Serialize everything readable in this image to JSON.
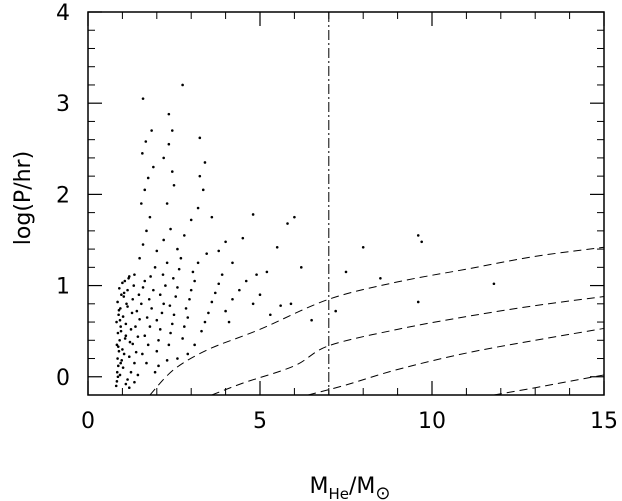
{
  "chart_data": {
    "type": "scatter",
    "title": "",
    "xlabel": {
      "main": "M",
      "sub": "He",
      "sep": "/M",
      "sun": "⊙"
    },
    "ylabel": "log(P/hr)",
    "xlim": [
      0,
      15
    ],
    "ylim": [
      -0.2,
      4
    ],
    "x_ticks": [
      0,
      5,
      10,
      15
    ],
    "x_tick_labels": [
      "0",
      "5",
      "10",
      "15"
    ],
    "y_ticks": [
      0,
      1,
      2,
      3,
      4
    ],
    "y_tick_labels": [
      "0",
      "1",
      "2",
      "3",
      "4"
    ],
    "grid": false,
    "vertical_line": {
      "x": 7.0,
      "style": "dash-dot"
    },
    "curves": [
      {
        "style": "dashed",
        "points": [
          [
            1.8,
            -0.2
          ],
          [
            2.5,
            0.08
          ],
          [
            3.5,
            0.3
          ],
          [
            5,
            0.52
          ],
          [
            7,
            0.85
          ],
          [
            9,
            1.04
          ],
          [
            11,
            1.18
          ],
          [
            13,
            1.32
          ],
          [
            15,
            1.42
          ]
        ]
      },
      {
        "style": "dashed",
        "points": [
          [
            3.6,
            -0.2
          ],
          [
            4.5,
            -0.07
          ],
          [
            6,
            0.12
          ],
          [
            7,
            0.34
          ],
          [
            9,
            0.52
          ],
          [
            11,
            0.66
          ],
          [
            13,
            0.78
          ],
          [
            15,
            0.88
          ]
        ]
      },
      {
        "style": "dashed",
        "points": [
          [
            6.4,
            -0.2
          ],
          [
            7.5,
            -0.09
          ],
          [
            9,
            0.08
          ],
          [
            11,
            0.26
          ],
          [
            13,
            0.4
          ],
          [
            15,
            0.53
          ]
        ]
      },
      {
        "style": "dashed",
        "points": [
          [
            11.8,
            -0.2
          ],
          [
            13,
            -0.12
          ],
          [
            14,
            -0.05
          ],
          [
            15,
            0.02
          ]
        ]
      }
    ],
    "points": [
      [
        0.82,
        -0.1
      ],
      [
        0.85,
        0.05
      ],
      [
        0.88,
        0.12
      ],
      [
        0.86,
        0.2
      ],
      [
        0.9,
        0.28
      ],
      [
        0.84,
        0.35
      ],
      [
        0.92,
        0.4
      ],
      [
        0.87,
        0.48
      ],
      [
        0.95,
        0.55
      ],
      [
        0.83,
        0.6
      ],
      [
        0.89,
        0.68
      ],
      [
        0.94,
        0.75
      ],
      [
        0.86,
        0.82
      ],
      [
        0.97,
        0.9
      ],
      [
        0.91,
        0.97
      ],
      [
        1.0,
        1.03
      ],
      [
        0.84,
        -0.05
      ],
      [
        0.93,
        0.02
      ],
      [
        1.02,
        0.1
      ],
      [
        0.98,
        0.18
      ],
      [
        1.05,
        0.25
      ],
      [
        0.88,
        0.33
      ],
      [
        1.08,
        0.42
      ],
      [
        0.96,
        0.5
      ],
      [
        1.1,
        0.58
      ],
      [
        1.02,
        0.66
      ],
      [
        0.9,
        0.73
      ],
      [
        1.12,
        0.8
      ],
      [
        1.04,
        0.88
      ],
      [
        1.15,
        0.95
      ],
      [
        1.07,
        1.05
      ],
      [
        1.18,
        1.08
      ],
      [
        0.95,
        0.15
      ],
      [
        1.2,
        0.22
      ],
      [
        1.0,
        0.3
      ],
      [
        1.22,
        0.38
      ],
      [
        1.1,
        0.45
      ],
      [
        1.25,
        0.52
      ],
      [
        0.93,
        0.62
      ],
      [
        1.28,
        0.7
      ],
      [
        1.15,
        0.77
      ],
      [
        1.3,
        0.85
      ],
      [
        1.05,
        0.92
      ],
      [
        1.33,
        1.0
      ],
      [
        1.2,
        1.1
      ],
      [
        0.87,
        0.0
      ],
      [
        1.1,
        -0.08
      ],
      [
        1.25,
        0.05
      ],
      [
        1.35,
        0.15
      ],
      [
        1.4,
        0.27
      ],
      [
        1.3,
        0.36
      ],
      [
        1.45,
        0.44
      ],
      [
        1.38,
        0.55
      ],
      [
        1.5,
        0.63
      ],
      [
        1.42,
        0.72
      ],
      [
        1.55,
        0.8
      ],
      [
        1.48,
        0.9
      ],
      [
        1.6,
        0.98
      ],
      [
        1.35,
        1.12
      ],
      [
        1.65,
        1.05
      ],
      [
        1.7,
        0.15
      ],
      [
        1.58,
        0.25
      ],
      [
        1.75,
        0.35
      ],
      [
        1.65,
        0.45
      ],
      [
        1.8,
        0.55
      ],
      [
        1.72,
        0.65
      ],
      [
        1.85,
        0.75
      ],
      [
        1.78,
        0.85
      ],
      [
        1.9,
        0.95
      ],
      [
        1.82,
        1.1
      ],
      [
        1.95,
        1.2
      ],
      [
        2.0,
        0.28
      ],
      [
        2.05,
        0.4
      ],
      [
        2.1,
        0.52
      ],
      [
        2.0,
        0.62
      ],
      [
        2.15,
        0.7
      ],
      [
        2.2,
        0.8
      ],
      [
        2.1,
        0.9
      ],
      [
        2.25,
        1.0
      ],
      [
        2.18,
        1.12
      ],
      [
        2.3,
        1.25
      ],
      [
        2.35,
        0.35
      ],
      [
        2.4,
        0.48
      ],
      [
        2.45,
        0.58
      ],
      [
        2.5,
        0.68
      ],
      [
        2.38,
        0.78
      ],
      [
        2.55,
        0.88
      ],
      [
        2.6,
        0.98
      ],
      [
        2.48,
        1.08
      ],
      [
        2.65,
        1.18
      ],
      [
        2.7,
        1.3
      ],
      [
        2.75,
        0.42
      ],
      [
        2.8,
        0.55
      ],
      [
        2.9,
        0.65
      ],
      [
        2.85,
        0.75
      ],
      [
        2.95,
        0.85
      ],
      [
        3.0,
        0.95
      ],
      [
        3.1,
        1.05
      ],
      [
        3.05,
        1.15
      ],
      [
        3.2,
        1.25
      ],
      [
        3.3,
        0.5
      ],
      [
        3.4,
        0.6
      ],
      [
        3.5,
        0.7
      ],
      [
        3.6,
        0.82
      ],
      [
        3.7,
        0.92
      ],
      [
        3.8,
        1.02
      ],
      [
        3.9,
        1.12
      ],
      [
        4.0,
        0.72
      ],
      [
        4.2,
        0.85
      ],
      [
        4.4,
        0.95
      ],
      [
        4.6,
        1.05
      ],
      [
        4.8,
        0.8
      ],
      [
        5.0,
        0.9
      ],
      [
        5.3,
        0.68
      ],
      [
        5.6,
        0.78
      ],
      [
        1.5,
        1.3
      ],
      [
        1.6,
        1.45
      ],
      [
        1.7,
        1.6
      ],
      [
        1.8,
        1.75
      ],
      [
        1.55,
        1.9
      ],
      [
        1.65,
        2.05
      ],
      [
        1.75,
        2.18
      ],
      [
        1.9,
        2.3
      ],
      [
        1.58,
        2.45
      ],
      [
        1.68,
        2.58
      ],
      [
        1.85,
        2.7
      ],
      [
        2.0,
        1.38
      ],
      [
        2.2,
        1.5
      ],
      [
        2.4,
        1.62
      ],
      [
        2.6,
        1.4
      ],
      [
        2.8,
        1.55
      ],
      [
        3.0,
        1.72
      ],
      [
        3.2,
        1.85
      ],
      [
        3.35,
        2.05
      ],
      [
        3.25,
        2.2
      ],
      [
        3.4,
        2.35
      ],
      [
        2.3,
        1.9
      ],
      [
        2.5,
        2.1
      ],
      [
        2.45,
        2.25
      ],
      [
        2.2,
        2.4
      ],
      [
        2.35,
        2.55
      ],
      [
        2.45,
        2.7
      ],
      [
        2.35,
        2.88
      ],
      [
        2.75,
        3.2
      ],
      [
        1.6,
        3.05
      ],
      [
        3.25,
        2.62
      ],
      [
        3.6,
        1.75
      ],
      [
        4.0,
        1.48
      ],
      [
        4.5,
        1.52
      ],
      [
        4.8,
        1.78
      ],
      [
        5.5,
        1.42
      ],
      [
        6.0,
        1.75
      ],
      [
        6.2,
        1.2
      ],
      [
        5.8,
        1.68
      ],
      [
        7.5,
        1.15
      ],
      [
        8.0,
        1.42
      ],
      [
        8.5,
        1.08
      ],
      [
        9.6,
        1.55
      ],
      [
        9.7,
        1.48
      ],
      [
        9.6,
        0.82
      ],
      [
        11.8,
        1.02
      ],
      [
        6.5,
        0.62
      ],
      [
        7.2,
        0.72
      ],
      [
        4.2,
        1.25
      ],
      [
        3.8,
        1.38
      ],
      [
        5.2,
        1.15
      ],
      [
        4.9,
        1.12
      ],
      [
        3.1,
        0.35
      ],
      [
        2.9,
        0.25
      ],
      [
        2.6,
        0.2
      ],
      [
        2.3,
        0.18
      ],
      [
        2.05,
        0.12
      ],
      [
        1.95,
        0.05
      ],
      [
        1.45,
        0.02
      ],
      [
        1.2,
        -0.12
      ],
      [
        1.15,
        -0.03
      ],
      [
        1.35,
        -0.06
      ],
      [
        3.45,
        1.35
      ],
      [
        4.1,
        0.6
      ],
      [
        5.9,
        0.8
      ]
    ]
  }
}
